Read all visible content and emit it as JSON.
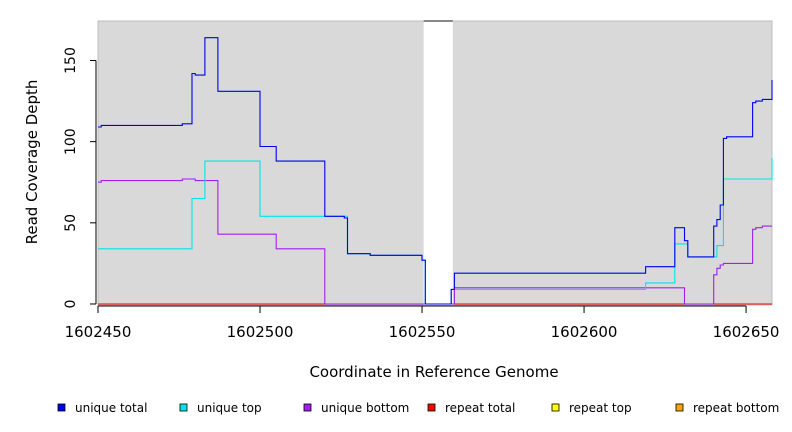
{
  "chart_data": {
    "type": "line",
    "title": "",
    "xlabel": "Coordinate in Reference Genome",
    "ylabel": "Read Coverage Depth",
    "xlim": [
      1602450,
      1602658
    ],
    "ylim": [
      0,
      170
    ],
    "x_ticks": [
      1602450,
      1602500,
      1602550,
      1602600,
      1602650
    ],
    "y_ticks": [
      0,
      50,
      100,
      150
    ],
    "x_tick_labels": [
      "1602450",
      "1602500",
      "1602550",
      "1602600",
      "1602650"
    ],
    "y_tick_labels": [
      "0",
      "50",
      "100",
      "150"
    ],
    "background_color": "#d9d9d9",
    "gap_regions": [
      [
        1602550.5,
        1602559.5
      ]
    ],
    "legend_position": "bottom",
    "series": [
      {
        "name": "unique total",
        "color": "#0000ee",
        "step": true,
        "points": [
          [
            1602450,
            109
          ],
          [
            1602451,
            110
          ],
          [
            1602476,
            111
          ],
          [
            1602479,
            142
          ],
          [
            1602480,
            141
          ],
          [
            1602483,
            164
          ],
          [
            1602487,
            131
          ],
          [
            1602500,
            97
          ],
          [
            1602505,
            88
          ],
          [
            1602520,
            54
          ],
          [
            1602526,
            53
          ],
          [
            1602527,
            31
          ],
          [
            1602534,
            30
          ],
          [
            1602550,
            27
          ],
          [
            1602551,
            0
          ],
          [
            1602559,
            9
          ],
          [
            1602560,
            19
          ],
          [
            1602619,
            23
          ],
          [
            1602628,
            47
          ],
          [
            1602631,
            39
          ],
          [
            1602632,
            29
          ],
          [
            1602640,
            48
          ],
          [
            1602641,
            52
          ],
          [
            1602642,
            61
          ],
          [
            1602643,
            102
          ],
          [
            1602644,
            103
          ],
          [
            1602652,
            124
          ],
          [
            1602653,
            125
          ],
          [
            1602655,
            126
          ],
          [
            1602658,
            138
          ]
        ],
        "x_end": 1602658
      },
      {
        "name": "unique top",
        "color": "#00e5e5",
        "step": true,
        "points": [
          [
            1602450,
            34
          ],
          [
            1602479,
            65
          ],
          [
            1602483,
            88
          ],
          [
            1602500,
            54
          ],
          [
            1602520,
            54
          ],
          [
            1602527,
            31
          ],
          [
            1602534,
            30
          ],
          [
            1602550,
            27
          ],
          [
            1602551,
            0
          ],
          [
            1602559,
            9
          ],
          [
            1602560,
            9
          ],
          [
            1602619,
            13
          ],
          [
            1602628,
            37
          ],
          [
            1602632,
            29
          ],
          [
            1602640,
            29
          ],
          [
            1602641,
            36
          ],
          [
            1602643,
            77
          ],
          [
            1602658,
            90
          ]
        ],
        "x_end": 1602658
      },
      {
        "name": "unique bottom",
        "color": "#a020f0",
        "step": true,
        "points": [
          [
            1602450,
            75
          ],
          [
            1602451,
            76
          ],
          [
            1602476,
            77
          ],
          [
            1602480,
            76
          ],
          [
            1602487,
            43
          ],
          [
            1602505,
            34
          ],
          [
            1602520,
            0
          ],
          [
            1602551,
            0
          ],
          [
            1602559,
            0
          ],
          [
            1602560,
            10
          ],
          [
            1602631,
            0
          ],
          [
            1602640,
            18
          ],
          [
            1602641,
            22
          ],
          [
            1602642,
            24
          ],
          [
            1602643,
            25
          ],
          [
            1602652,
            46
          ],
          [
            1602653,
            47
          ],
          [
            1602655,
            48
          ]
        ],
        "x_end": 1602658
      },
      {
        "name": "repeat total",
        "color": "#ff0000",
        "step": true,
        "points": [
          [
            1602450,
            0
          ]
        ],
        "x_end": 1602658
      },
      {
        "name": "repeat top",
        "color": "#ffff00",
        "step": true,
        "points": [
          [
            1602450,
            0
          ]
        ],
        "x_end": 1602658
      },
      {
        "name": "repeat bottom",
        "color": "#ffa500",
        "step": true,
        "points": [
          [
            1602450,
            0
          ]
        ],
        "x_end": 1602658
      }
    ]
  }
}
